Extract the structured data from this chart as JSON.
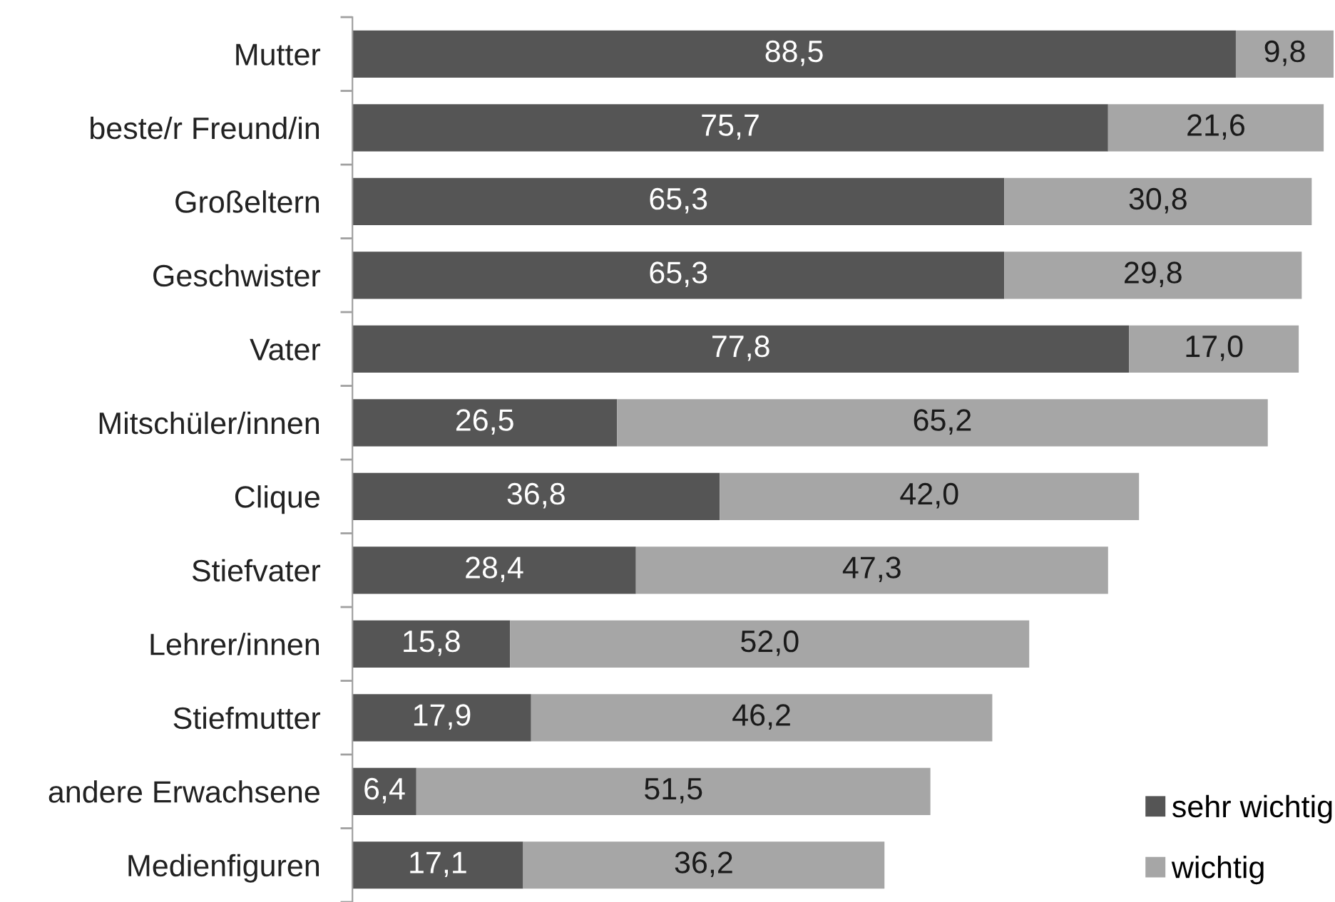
{
  "chart_data": {
    "type": "bar",
    "orientation": "horizontal",
    "stacked": true,
    "categories": [
      "Mutter",
      "beste/r Freund/in",
      "Großeltern",
      "Geschwister",
      "Vater",
      "Mitschüler/innen",
      "Clique",
      "Stiefvater",
      "Lehrer/innen",
      "Stiefmutter",
      "andere Erwachsene",
      "Medienfiguren"
    ],
    "series": [
      {
        "name": "sehr wichtig",
        "color": "#555555",
        "values": [
          88.5,
          75.7,
          65.3,
          65.3,
          77.8,
          26.5,
          36.8,
          28.4,
          15.8,
          17.9,
          6.4,
          17.1
        ],
        "value_labels": [
          "88,5",
          "75,7",
          "65,3",
          "65,3",
          "77,8",
          "26,5",
          "36,8",
          "28,4",
          "15,8",
          "17,9",
          "6,4",
          "17,1"
        ]
      },
      {
        "name": "wichtig",
        "color": "#a6a6a6",
        "values": [
          9.8,
          21.6,
          30.8,
          29.8,
          17.0,
          65.2,
          42.0,
          47.3,
          52.0,
          46.2,
          51.5,
          36.2
        ],
        "value_labels": [
          "9,8",
          "21,6",
          "30,8",
          "29,8",
          "17,0",
          "65,2",
          "42,0",
          "47,3",
          "52,0",
          "46,2",
          "51,5",
          "36,2"
        ]
      }
    ],
    "legend": "bottom right",
    "tick_labels": "y"
  }
}
